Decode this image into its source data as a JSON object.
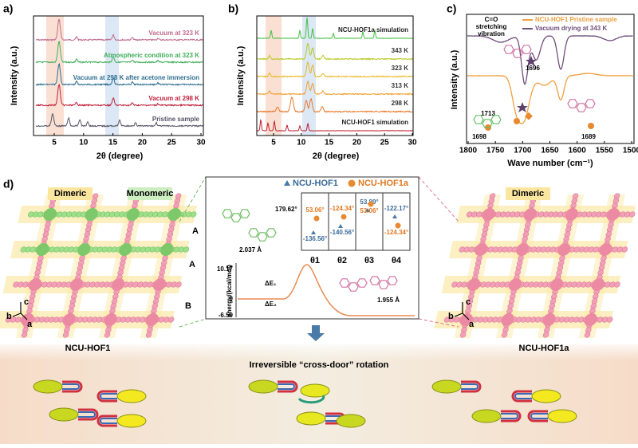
{
  "panel_a": {
    "label": "a)",
    "y_axis": "Intensity (a.u.)",
    "x_axis": "2θ (degree)",
    "xticks": [
      5,
      10,
      15,
      20,
      25,
      30
    ],
    "traces": [
      "Vacuum at 323 K",
      "Atmospheric condition at 323 K",
      "Vacuum at 298 K after acetone immersion",
      "Vacuum at 298 K",
      "Pristine sample"
    ]
  },
  "panel_b": {
    "label": "b)",
    "y_axis": "Intensity (a.u.)",
    "x_axis": "2θ (degree)",
    "xticks": [
      5,
      10,
      15,
      20,
      25,
      30
    ],
    "traces": [
      "NCU-HOF1a simulation",
      "343 K",
      "323 K",
      "313 K",
      "298 K",
      "NCU-HOF1 simulation"
    ]
  },
  "panel_c": {
    "label": "c)",
    "y_axis": "Intensity (a.u.)",
    "x_axis": "Wave number (cm⁻¹)",
    "xticks": [
      1800,
      1750,
      1700,
      1650,
      1600,
      1550,
      1500
    ],
    "legend": [
      "NCU-HOF1 Pristine sample",
      "Vacuum drying at 343 K"
    ],
    "note": [
      "C=O",
      "stretching",
      "vibration"
    ],
    "peaks": [
      "1696",
      "1713",
      "1698",
      "1689"
    ]
  },
  "panel_d": {
    "label": "d)",
    "left": {
      "tags": [
        "Dimeric",
        "Monomeric"
      ],
      "rows": [
        "A",
        "A",
        "B"
      ],
      "axes": [
        "c",
        "b",
        "a"
      ],
      "name": "NCU-HOF1"
    },
    "right": {
      "tags": [
        "Dimeric"
      ],
      "axes": [
        "c",
        "b",
        "a"
      ],
      "name": "NCU-HOF1a"
    },
    "inset": {
      "legend": [
        "NCU-HOF1",
        "NCU-HOF1a"
      ],
      "dihedral": "179.62°",
      "bond1": "2.037 Å",
      "bond2": "1.955 Å",
      "angles": [
        [
          "53.06°",
          "-136.56°"
        ],
        [
          "-124.34°",
          "-140.56°"
        ],
        [
          "53.89°",
          "53.06°"
        ],
        [
          "-122.17°",
          "-124.34°"
        ]
      ],
      "thetas": [
        "θ1",
        "θ2",
        "θ3",
        "θ4"
      ],
      "energy_axis": "energy/(kcal/mol)",
      "energy_ticks": [
        "10.17",
        "0",
        "-6.59"
      ],
      "deltas": [
        "ΔE₁",
        "ΔE₂"
      ]
    }
  },
  "bottom": {
    "title": "Irreversible “cross-door” rotation"
  }
}
